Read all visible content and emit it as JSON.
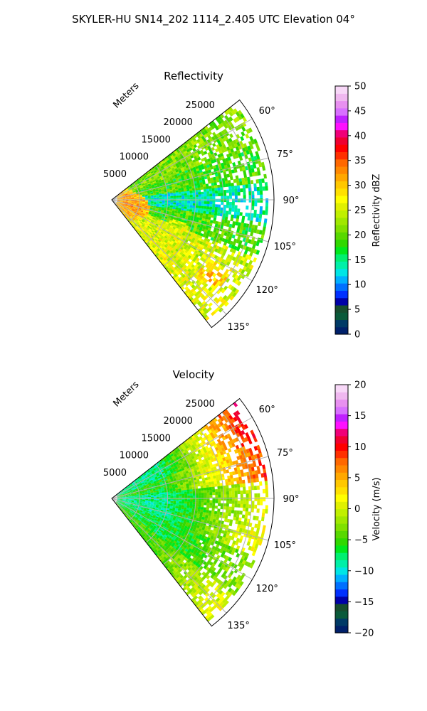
{
  "figure": {
    "suptitle": "SKYLER-HU  SN14_202  1114_2.405 UTC Elevation 04°"
  },
  "chart_data": [
    {
      "type": "heatmap",
      "projection": "polar-sector",
      "title": "Reflectivity",
      "angular_ticks": [
        "60°",
        "75°",
        "90°",
        "105°",
        "120°",
        "135°"
      ],
      "angular_tick_values": [
        60,
        75,
        90,
        105,
        120,
        135
      ],
      "angular_range_deg": [
        52,
        142
      ],
      "radial_label": "Meters",
      "radial_ticks": [
        "5000",
        "10000",
        "15000",
        "20000",
        "25000"
      ],
      "radial_tick_values": [
        5000,
        10000,
        15000,
        20000,
        25000
      ],
      "radial_max": 29000,
      "grid": true,
      "colorbar": {
        "label": "Reflectivity dBZ",
        "range": [
          0,
          50
        ],
        "ticks": [
          "0",
          "5",
          "10",
          "15",
          "20",
          "25",
          "30",
          "35",
          "40",
          "45",
          "50"
        ],
        "tick_values": [
          0,
          5,
          10,
          15,
          20,
          25,
          30,
          35,
          40,
          45,
          50
        ],
        "colors": [
          "#00206a",
          "#003a66",
          "#0a5a3a",
          "#174d2e",
          "#0000a8",
          "#0030ff",
          "#0070ff",
          "#00b0ff",
          "#00e5e5",
          "#00f0a8",
          "#00f070",
          "#00e81c",
          "#30d800",
          "#58d800",
          "#80e000",
          "#a0e800",
          "#c0f000",
          "#e0f000",
          "#ffff00",
          "#ffe000",
          "#ffc800",
          "#ffa800",
          "#ff8800",
          "#ff6800",
          "#ff3000",
          "#ff0000",
          "#f00030",
          "#f00078",
          "#ff10ff",
          "#c020ff",
          "#d870ff",
          "#e890f0",
          "#f0b8f0",
          "#f8d8f8"
        ]
      },
      "field": {
        "min_range": 1000,
        "max_range": 28000,
        "sectors": [
          {
            "from_deg": 52,
            "to_deg": 68,
            "dbz": 21
          },
          {
            "from_deg": 68,
            "to_deg": 84,
            "dbz": 19
          },
          {
            "from_deg": 84,
            "to_deg": 98,
            "dbz": 14
          },
          {
            "from_deg": 98,
            "to_deg": 112,
            "dbz": 19
          },
          {
            "from_deg": 112,
            "to_deg": 128,
            "dbz": 25
          },
          {
            "from_deg": 128,
            "to_deg": 142,
            "dbz": 26
          }
        ],
        "hotspots": [
          {
            "deg": 95,
            "range": 2500,
            "dbz": 33
          },
          {
            "deg": 107,
            "range": 4500,
            "dbz": 33
          },
          {
            "deg": 127,
            "range": 22500,
            "dbz": 31
          },
          {
            "deg": 118,
            "range": 13000,
            "dbz": 27
          }
        ]
      }
    },
    {
      "type": "heatmap",
      "projection": "polar-sector",
      "title": "Velocity",
      "angular_ticks": [
        "60°",
        "75°",
        "90°",
        "105°",
        "120°",
        "135°"
      ],
      "angular_tick_values": [
        60,
        75,
        90,
        105,
        120,
        135
      ],
      "angular_range_deg": [
        52,
        142
      ],
      "radial_label": "Meters",
      "radial_ticks": [
        "5000",
        "10000",
        "15000",
        "20000",
        "25000"
      ],
      "radial_tick_values": [
        5000,
        10000,
        15000,
        20000,
        25000
      ],
      "radial_max": 29000,
      "grid": true,
      "colorbar": {
        "label": "Velocity (m/s)",
        "range": [
          -20,
          20
        ],
        "ticks": [
          "−20",
          "−15",
          "−10",
          "−5",
          "0",
          "5",
          "10",
          "15",
          "20"
        ],
        "tick_values": [
          -20,
          -15,
          -10,
          -5,
          0,
          5,
          10,
          15,
          20
        ],
        "colors": [
          "#00206a",
          "#003a66",
          "#0a5a3a",
          "#174d2e",
          "#0000a8",
          "#0030ff",
          "#0070ff",
          "#00b0ff",
          "#00e5e5",
          "#00f0a8",
          "#00f070",
          "#00e81c",
          "#30d800",
          "#58d800",
          "#80e000",
          "#a0e800",
          "#c0f000",
          "#e0f000",
          "#ffff00",
          "#ffe000",
          "#ffc800",
          "#ffa800",
          "#ff8800",
          "#ff6800",
          "#ff3000",
          "#ff0000",
          "#f00030",
          "#f00078",
          "#ff10ff",
          "#c020ff",
          "#d870ff",
          "#e890f0",
          "#f0b8f0",
          "#f8d8f8"
        ]
      },
      "field": {
        "min_range": 1000,
        "max_range": 28000,
        "near_range": 10000,
        "sectors": [
          {
            "from_deg": 52,
            "to_deg": 68,
            "near": -8,
            "far": 11
          },
          {
            "from_deg": 68,
            "to_deg": 84,
            "near": -6,
            "far": 9
          },
          {
            "from_deg": 84,
            "to_deg": 98,
            "near": -8,
            "far": 1
          },
          {
            "from_deg": 98,
            "to_deg": 112,
            "near": -8,
            "far": 2
          },
          {
            "from_deg": 112,
            "to_deg": 128,
            "near": -7,
            "far": -2
          },
          {
            "from_deg": 128,
            "to_deg": 142,
            "near": -5,
            "far": 1
          }
        ]
      }
    }
  ]
}
